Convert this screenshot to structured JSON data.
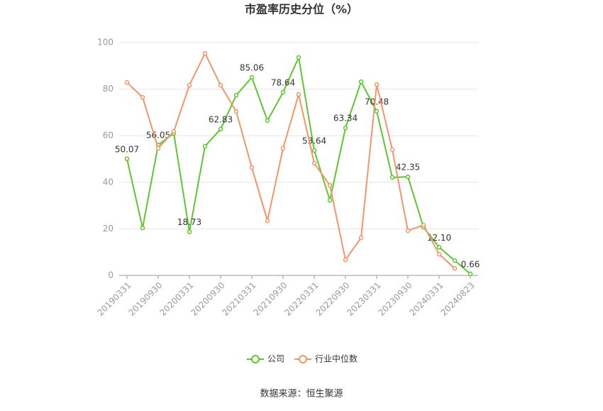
{
  "chart_data": {
    "type": "line",
    "title": "市盈率历史分位（%）",
    "categories": [
      "20190331",
      null,
      "20190930",
      null,
      "20200331",
      null,
      "20200930",
      null,
      "20210331",
      null,
      "20210930",
      null,
      "20220331",
      null,
      "20220930",
      null,
      "20230331",
      null,
      "20230930",
      null,
      "20240331",
      null,
      "20240823"
    ],
    "series": [
      {
        "name": "公司",
        "color": "#5cc72e",
        "values": [
          50.07,
          20.4,
          56.05,
          61,
          18.73,
          55.5,
          62.83,
          77.4,
          85.06,
          66.5,
          78.64,
          93.6,
          53.64,
          32.3,
          63.34,
          83.2,
          70.48,
          42.1,
          42.35,
          20.7,
          12.1,
          6.4,
          0.66
        ],
        "value_labels": [
          "50.07",
          null,
          "56.05",
          null,
          "18.73",
          null,
          "62.83",
          null,
          "85.06",
          null,
          "78.64",
          null,
          "53.64",
          null,
          "63.34",
          null,
          "70.48",
          null,
          "42.35",
          null,
          "12.10",
          null,
          "0.66"
        ]
      },
      {
        "name": "行业中位数",
        "color": "#f2956a",
        "values": [
          82.9,
          76.5,
          54.6,
          61.9,
          81.7,
          95.4,
          81.7,
          70.4,
          46.3,
          23.5,
          54.6,
          77.7,
          48.2,
          38.7,
          6.7,
          16.2,
          82.0,
          54.0,
          19.2,
          21.6,
          9.1,
          3.0,
          null
        ]
      }
    ],
    "ylim": [
      0,
      100
    ],
    "yticks": [
      0,
      20,
      40,
      60,
      80,
      100
    ],
    "grid": true,
    "legend": "bottom",
    "source": "数据来源：恒生聚源"
  }
}
